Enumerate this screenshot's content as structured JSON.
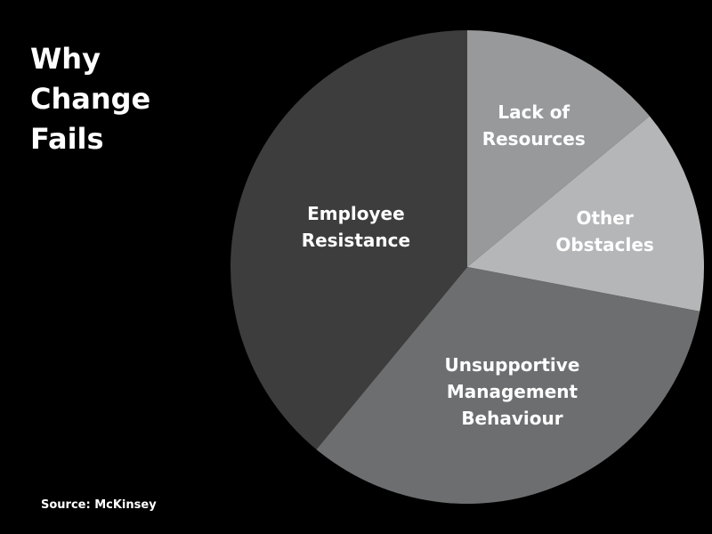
{
  "chart_data": {
    "type": "pie",
    "title": "Why Change Fails",
    "source": "Source: McKinsey",
    "categories": [
      "Lack of Resources",
      "Other Obstacles",
      "Unsupportive Management Behaviour",
      "Employee Resistance"
    ],
    "values": [
      14,
      14,
      33,
      39
    ],
    "colors": [
      "#98999b",
      "#b5b6b8",
      "#6d6e70",
      "#3d3d3d"
    ]
  }
}
